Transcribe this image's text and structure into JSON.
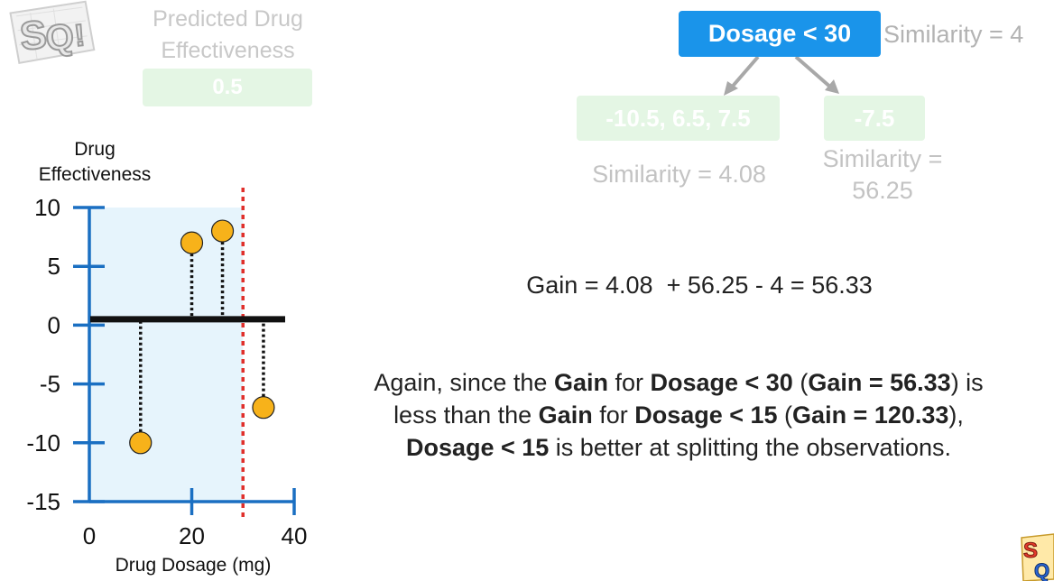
{
  "prediction": {
    "title_line1": "Predicted Drug",
    "title_line2": "Effectiveness",
    "value": "0.5"
  },
  "tree": {
    "root_label": "Dosage < 30",
    "root_similarity": "Similarity = 4",
    "left_leaf_residuals": "-10.5, 6.5, 7.5",
    "left_leaf_similarity": "Similarity = 4.08",
    "right_leaf_residuals": "-7.5",
    "right_leaf_similarity_line1": "Similarity =",
    "right_leaf_similarity_line2": "56.25"
  },
  "gain_equation": "Gain = 4.08  + 56.25 - 4 = 56.33",
  "explanation": {
    "t1": "Again, since the ",
    "b1": "Gain",
    "t2": " for ",
    "b2": "Dosage < 30",
    "t3": " (",
    "b3": "Gain = 56.33",
    "t4": ") is less than the ",
    "b4": "Gain",
    "t5": " for ",
    "b5": "Dosage < 15",
    "t6": " (",
    "b6": "Gain = 120.33",
    "t7": "), ",
    "b7": "Dosage < 15",
    "t8": " is better at splitting the observations."
  },
  "chart_data": {
    "type": "scatter",
    "ylabel_line1": "Drug",
    "ylabel_line2": "Effectiveness",
    "xlabel": "Drug Dosage (mg)",
    "xlim": [
      0,
      40
    ],
    "ylim": [
      -15,
      10
    ],
    "x_ticks": [
      "0",
      "20",
      "40"
    ],
    "y_ticks": [
      "10",
      "5",
      "0",
      "-5",
      "-10",
      "-15"
    ],
    "x_tick_values": [
      0,
      20,
      40
    ],
    "y_tick_values": [
      10,
      5,
      0,
      -5,
      -10,
      -15
    ],
    "prediction_line": 0.5,
    "split_threshold": 30,
    "shaded_region_x": [
      0,
      30
    ],
    "points": [
      {
        "x": 10,
        "y": -10
      },
      {
        "x": 20,
        "y": 7
      },
      {
        "x": 26,
        "y": 8
      },
      {
        "x": 34,
        "y": -7
      }
    ],
    "colors": {
      "axis": "#1a6fc2",
      "shade": "#e6f4fc",
      "point_fill": "#f7b21a",
      "point_stroke": "#222222",
      "threshold": "#e0302c",
      "prediction_line": "#111111"
    }
  }
}
